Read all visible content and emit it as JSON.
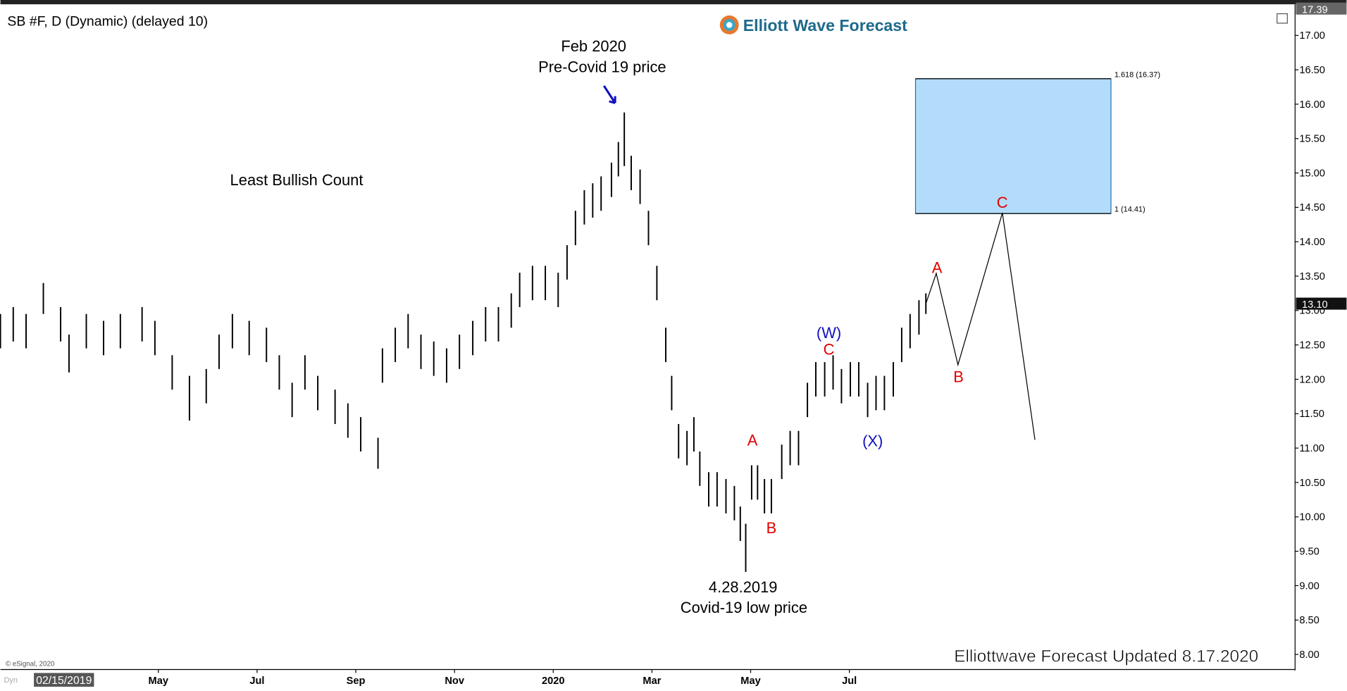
{
  "header": {
    "symbol": "SB #F, D (Dynamic) (delayed 10)",
    "logo": "Elliott Wave Forecast",
    "copyright": "© eSignal, 2020",
    "mode": "Dyn",
    "date_box": "02/15/2019",
    "footer": "Elliottwave Forecast Updated 8.17.2020"
  },
  "chart_data": {
    "type": "ohlc",
    "color": "#000000",
    "xlim": [
      0.8,
      27.03
    ],
    "ylim": [
      7.78,
      17.39
    ],
    "xticks": [
      {
        "value": 4,
        "label": "May"
      },
      {
        "value": 6,
        "label": "Jul"
      },
      {
        "value": 8,
        "label": "Sep"
      },
      {
        "value": 10,
        "label": "Nov"
      },
      {
        "value": 12,
        "label": "2020"
      },
      {
        "value": 14,
        "label": "Mar"
      },
      {
        "value": 16,
        "label": "May"
      },
      {
        "value": 18,
        "label": "Jul"
      }
    ],
    "yticks": [
      {
        "value": 8,
        "label": "8.00"
      },
      {
        "value": 8.5,
        "label": "8.50"
      },
      {
        "value": 9,
        "label": "9.00"
      },
      {
        "value": 9.5,
        "label": "9.50"
      },
      {
        "value": 10,
        "label": "10.00"
      },
      {
        "value": 10.5,
        "label": "10.50"
      },
      {
        "value": 11,
        "label": "11.00"
      },
      {
        "value": 11.5,
        "label": "11.50"
      },
      {
        "value": 12,
        "label": "12.00"
      },
      {
        "value": 12.5,
        "label": "12.50"
      },
      {
        "value": 13,
        "label": "13.00"
      },
      {
        "value": 13.5,
        "label": "13.50"
      },
      {
        "value": 14,
        "label": "14.00"
      },
      {
        "value": 14.5,
        "label": "14.50"
      },
      {
        "value": 15,
        "label": "15.00"
      },
      {
        "value": 15.5,
        "label": "15.50"
      },
      {
        "value": 16,
        "label": "16.00"
      },
      {
        "value": 16.5,
        "label": "16.50"
      },
      {
        "value": 17,
        "label": "17.00"
      }
    ],
    "price_tags": [
      {
        "value": 17.39,
        "label": "17.39"
      },
      {
        "value": 13.1,
        "label": "13.10"
      }
    ],
    "bars": [
      {
        "x": 0.8,
        "high": 12.95,
        "low": 12.45
      },
      {
        "x": 1.06,
        "high": 13.05,
        "low": 12.55
      },
      {
        "x": 1.32,
        "high": 12.95,
        "low": 12.45
      },
      {
        "x": 1.67,
        "high": 13.4,
        "low": 12.95
      },
      {
        "x": 2.02,
        "high": 13.05,
        "low": 12.55
      },
      {
        "x": 2.19,
        "high": 12.65,
        "low": 12.1
      },
      {
        "x": 2.54,
        "high": 12.95,
        "low": 12.45
      },
      {
        "x": 2.89,
        "high": 12.85,
        "low": 12.35
      },
      {
        "x": 3.23,
        "high": 12.95,
        "low": 12.45
      },
      {
        "x": 3.67,
        "high": 13.05,
        "low": 12.55
      },
      {
        "x": 3.93,
        "high": 12.85,
        "low": 12.35
      },
      {
        "x": 4.28,
        "high": 12.35,
        "low": 11.85
      },
      {
        "x": 4.63,
        "high": 12.05,
        "low": 11.4
      },
      {
        "x": 4.97,
        "high": 12.15,
        "low": 11.65
      },
      {
        "x": 5.23,
        "high": 12.65,
        "low": 12.15
      },
      {
        "x": 5.5,
        "high": 12.95,
        "low": 12.45
      },
      {
        "x": 5.84,
        "high": 12.85,
        "low": 12.35
      },
      {
        "x": 6.19,
        "high": 12.75,
        "low": 12.25
      },
      {
        "x": 6.45,
        "high": 12.35,
        "low": 11.85
      },
      {
        "x": 6.71,
        "high": 11.95,
        "low": 11.45
      },
      {
        "x": 6.97,
        "high": 12.35,
        "low": 11.85
      },
      {
        "x": 7.23,
        "high": 12.05,
        "low": 11.55
      },
      {
        "x": 7.58,
        "high": 11.85,
        "low": 11.35
      },
      {
        "x": 7.84,
        "high": 11.65,
        "low": 11.15
      },
      {
        "x": 8.1,
        "high": 11.45,
        "low": 10.95
      },
      {
        "x": 8.45,
        "high": 11.15,
        "low": 10.7
      },
      {
        "x": 8.54,
        "high": 12.45,
        "low": 11.95
      },
      {
        "x": 8.8,
        "high": 12.75,
        "low": 12.25
      },
      {
        "x": 9.06,
        "high": 12.95,
        "low": 12.45
      },
      {
        "x": 9.32,
        "high": 12.65,
        "low": 12.15
      },
      {
        "x": 9.58,
        "high": 12.55,
        "low": 12.05
      },
      {
        "x": 9.84,
        "high": 12.45,
        "low": 11.95
      },
      {
        "x": 10.1,
        "high": 12.65,
        "low": 12.15
      },
      {
        "x": 10.37,
        "high": 12.85,
        "low": 12.35
      },
      {
        "x": 10.63,
        "high": 13.05,
        "low": 12.55
      },
      {
        "x": 10.89,
        "high": 13.05,
        "low": 12.55
      },
      {
        "x": 11.15,
        "high": 13.25,
        "low": 12.75
      },
      {
        "x": 11.32,
        "high": 13.55,
        "low": 13.05
      },
      {
        "x": 11.58,
        "high": 13.65,
        "low": 13.15
      },
      {
        "x": 11.84,
        "high": 13.65,
        "low": 13.15
      },
      {
        "x": 12.1,
        "high": 13.55,
        "low": 13.05
      },
      {
        "x": 12.28,
        "high": 13.95,
        "low": 13.45
      },
      {
        "x": 12.45,
        "high": 14.45,
        "low": 13.95
      },
      {
        "x": 12.63,
        "high": 14.75,
        "low": 14.25
      },
      {
        "x": 12.8,
        "high": 14.85,
        "low": 14.35
      },
      {
        "x": 12.97,
        "high": 14.95,
        "low": 14.45
      },
      {
        "x": 13.18,
        "high": 15.15,
        "low": 14.65
      },
      {
        "x": 13.32,
        "high": 15.45,
        "low": 14.95
      },
      {
        "x": 13.44,
        "high": 15.88,
        "low": 15.1
      },
      {
        "x": 13.58,
        "high": 15.25,
        "low": 14.75
      },
      {
        "x": 13.76,
        "high": 15.05,
        "low": 14.55
      },
      {
        "x": 13.93,
        "high": 14.45,
        "low": 13.95
      },
      {
        "x": 14.1,
        "high": 13.65,
        "low": 13.15
      },
      {
        "x": 14.28,
        "high": 12.75,
        "low": 12.25
      },
      {
        "x": 14.4,
        "high": 12.05,
        "low": 11.55
      },
      {
        "x": 14.54,
        "high": 11.35,
        "low": 10.85
      },
      {
        "x": 14.71,
        "high": 11.25,
        "low": 10.75
      },
      {
        "x": 14.85,
        "high": 11.45,
        "low": 10.95
      },
      {
        "x": 14.97,
        "high": 10.95,
        "low": 10.45
      },
      {
        "x": 15.15,
        "high": 10.65,
        "low": 10.15
      },
      {
        "x": 15.32,
        "high": 10.65,
        "low": 10.15
      },
      {
        "x": 15.5,
        "high": 10.55,
        "low": 10.05
      },
      {
        "x": 15.67,
        "high": 10.45,
        "low": 9.95
      },
      {
        "x": 15.79,
        "high": 10.15,
        "low": 9.65
      },
      {
        "x": 15.9,
        "high": 9.9,
        "low": 9.2
      },
      {
        "x": 16.02,
        "high": 10.75,
        "low": 10.25
      },
      {
        "x": 16.14,
        "high": 10.75,
        "low": 10.25
      },
      {
        "x": 16.28,
        "high": 10.55,
        "low": 10.05
      },
      {
        "x": 16.42,
        "high": 10.55,
        "low": 10.05
      },
      {
        "x": 16.63,
        "high": 11.05,
        "low": 10.55
      },
      {
        "x": 16.8,
        "high": 11.25,
        "low": 10.75
      },
      {
        "x": 16.97,
        "high": 11.25,
        "low": 10.75
      },
      {
        "x": 17.15,
        "high": 11.95,
        "low": 11.45
      },
      {
        "x": 17.32,
        "high": 12.25,
        "low": 11.75
      },
      {
        "x": 17.5,
        "high": 12.25,
        "low": 11.75
      },
      {
        "x": 17.67,
        "high": 12.35,
        "low": 11.85
      },
      {
        "x": 17.84,
        "high": 12.15,
        "low": 11.65
      },
      {
        "x": 18.02,
        "high": 12.25,
        "low": 11.75
      },
      {
        "x": 18.19,
        "high": 12.25,
        "low": 11.75
      },
      {
        "x": 18.37,
        "high": 11.95,
        "low": 11.45
      },
      {
        "x": 18.54,
        "high": 12.05,
        "low": 11.55
      },
      {
        "x": 18.71,
        "high": 12.05,
        "low": 11.55
      },
      {
        "x": 18.89,
        "high": 12.25,
        "low": 11.75
      },
      {
        "x": 19.06,
        "high": 12.75,
        "low": 12.25
      },
      {
        "x": 19.23,
        "high": 12.95,
        "low": 12.45
      },
      {
        "x": 19.41,
        "high": 13.15,
        "low": 12.65
      },
      {
        "x": 19.55,
        "high": 13.25,
        "low": 12.95
      }
    ],
    "projection": {
      "color": "#000000",
      "x": [
        19.55,
        19.76,
        20.2,
        21.1,
        21.76
      ],
      "values": [
        13.1,
        13.54,
        12.21,
        14.42,
        11.12
      ]
    },
    "target_zone": {
      "color": "#b3dcfa",
      "x": [
        19.34,
        23.3
      ],
      "from": 14.41,
      "to": 16.37,
      "from_label": "1 (14.41)",
      "to_label": "1.618 (16.37)"
    },
    "annotations": [
      "Feb 2020",
      "Pre-Covid 19 price",
      "Least Bullish Count",
      "4.28.2019",
      "Covid-19 low price"
    ],
    "wave_labels": [
      {
        "text": "A",
        "color": "#e00000"
      },
      {
        "text": "B",
        "color": "#e00000"
      },
      {
        "text": "(W)",
        "color": "#1010c0"
      },
      {
        "text": "C",
        "color": "#e00000"
      },
      {
        "text": "(X)",
        "color": "#1010c0"
      },
      {
        "text": "A",
        "color": "#e00000"
      },
      {
        "text": "B",
        "color": "#e00000"
      },
      {
        "text": "C",
        "color": "#e00000"
      }
    ]
  }
}
